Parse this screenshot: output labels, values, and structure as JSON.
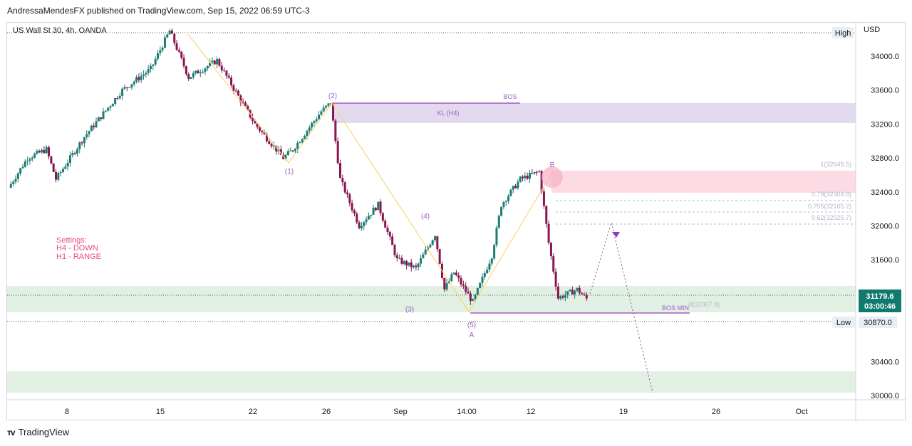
{
  "header": {
    "text": "AndressaMendesFX published on TradingView.com, Sep 15, 2022 06:59 UTC-3"
  },
  "footer": {
    "brand": "TradingView"
  },
  "colors": {
    "up": "#1b7d73",
    "down": "#8a1550",
    "kl_zone": "#e3d9ee",
    "supply_zone": "#fcdbe4",
    "demand_zone": "#e1f0e3",
    "purple": "#a35bc4",
    "wave_line": "#f6d77a",
    "price_badge": "#117a70",
    "text_pink": "#e8487d"
  },
  "chart_data": {
    "type": "candlestick",
    "title": "US Wall St 30, 4h, OANDA",
    "currency": "USD",
    "y_range": [
      29850,
      34450
    ],
    "y_ticks": [
      "34000.0",
      "33600.0",
      "33200.0",
      "32800.0",
      "32400.0",
      "32000.0",
      "31600.0",
      "30400.0",
      "30000.0"
    ],
    "x_ticks": [
      "8",
      "15",
      "22",
      "26",
      "Sep",
      "14:00",
      "12",
      "19",
      "26",
      "Oct"
    ],
    "high_label": "High",
    "low_label": "Low",
    "low_value": "30870.0",
    "last_price": "31179.6",
    "countdown": "03:00:46",
    "wave_labels": [
      "(1)",
      "(2)",
      "(3)",
      "(4)",
      "(5)",
      "A",
      "B"
    ],
    "zone_labels": {
      "kl": "KL (H4)",
      "bos": "BOS",
      "bos_min": "BOS MIN"
    },
    "fib_levels": [
      "1(32649.5)",
      "0.79(32304.8)",
      "0.705(32165.2)",
      "0.62(32025.7)",
      "0(31007.9)"
    ],
    "settings_text": [
      "Settings:",
      "H4 - DOWN",
      "H1 - RANGE"
    ],
    "price_path": [
      [
        0,
        32450
      ],
      [
        2,
        32800
      ],
      [
        4,
        32900
      ],
      [
        5,
        32550
      ],
      [
        8,
        33050
      ],
      [
        12,
        33600
      ],
      [
        15,
        33850
      ],
      [
        17,
        34300
      ],
      [
        19,
        33750
      ],
      [
        22,
        33950
      ],
      [
        26,
        33200
      ],
      [
        29,
        32800
      ],
      [
        30,
        32900
      ],
      [
        33,
        33350
      ],
      [
        34,
        33450
      ],
      [
        35,
        32550
      ],
      [
        37,
        32000
      ],
      [
        39,
        32250
      ],
      [
        41,
        31600
      ],
      [
        43,
        31500
      ],
      [
        45,
        31900
      ],
      [
        46,
        31250
      ],
      [
        47,
        31450
      ],
      [
        49,
        31100
      ],
      [
        51,
        31650
      ],
      [
        52,
        32250
      ],
      [
        54,
        32550
      ],
      [
        56,
        32640
      ],
      [
        57,
        31800
      ],
      [
        58,
        31150
      ],
      [
        60,
        31250
      ],
      [
        61,
        31140
      ]
    ]
  }
}
